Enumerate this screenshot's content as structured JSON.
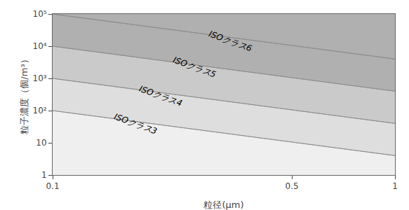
{
  "chart_data": {
    "type": "area",
    "xlabel": "粒径(μm)",
    "ylabel": "粒子濃度（個/m³）",
    "log": true,
    "grid": false,
    "color": "#888888",
    "x": [
      0.1,
      1.0
    ],
    "series": [
      {
        "name": "ISOクラス3",
        "color": "#efefef",
        "values": [
          100,
          4
        ]
      },
      {
        "name": "ISOクラス4",
        "color": "#dedede",
        "values": [
          1000,
          40
        ]
      },
      {
        "name": "ISOクラス5",
        "color": "#cacaca",
        "values": [
          10000,
          400
        ]
      },
      {
        "name": "ISOクラス6",
        "color": "#b0b0b0",
        "values": [
          100000,
          4000
        ]
      }
    ],
    "annotations": [
      {
        "text": "ISOクラス6",
        "x": 0.28,
        "y": 14000
      },
      {
        "text": "ISOクラス5",
        "x": 0.22,
        "y": 2200
      },
      {
        "text": "ISOクラス4",
        "x": 0.175,
        "y": 290
      },
      {
        "text": "ISOクラス3",
        "x": 0.148,
        "y": 38
      }
    ],
    "xlim": [
      0.1,
      1.0
    ],
    "ylim": [
      1,
      100000
    ],
    "xticks": [
      0.1,
      0.5,
      1
    ],
    "yticks": [
      1,
      10,
      {
        "value": 100,
        "label": "10²"
      },
      {
        "value": 1000,
        "label": "10³"
      },
      {
        "value": 10000,
        "label": "10⁴"
      },
      {
        "value": 100000,
        "label": "10⁵"
      }
    ]
  }
}
